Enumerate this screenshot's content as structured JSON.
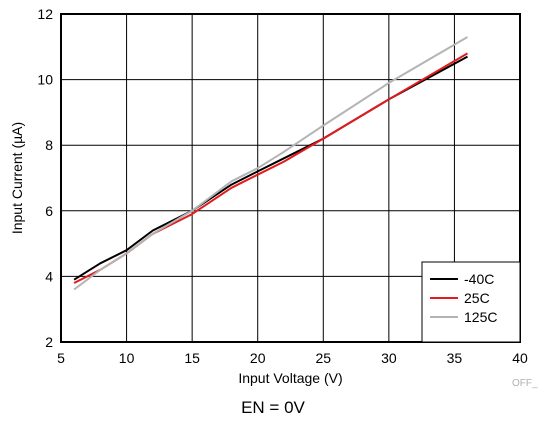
{
  "chart_data": {
    "type": "line",
    "xlabel": "Input Voltage (V)",
    "ylabel": "Input Current (µA)",
    "xlim": [
      5,
      40
    ],
    "ylim": [
      2,
      12
    ],
    "xticks": [
      5,
      10,
      15,
      20,
      25,
      30,
      35,
      40
    ],
    "yticks": [
      2,
      4,
      6,
      8,
      10,
      12
    ],
    "grid": true,
    "legend_position": "bottom-right",
    "series": [
      {
        "name": "-40C",
        "color": "#000000",
        "x": [
          6,
          8,
          10,
          12,
          15,
          18,
          20,
          22,
          25,
          30,
          36
        ],
        "y": [
          3.9,
          4.4,
          4.8,
          5.4,
          6.0,
          6.8,
          7.2,
          7.6,
          8.2,
          9.4,
          10.7
        ]
      },
      {
        "name": "25C",
        "color": "#e41a1c",
        "x": [
          6,
          8,
          10,
          12,
          15,
          18,
          20,
          22,
          25,
          30,
          36
        ],
        "y": [
          3.8,
          4.2,
          4.7,
          5.3,
          5.9,
          6.7,
          7.1,
          7.5,
          8.2,
          9.4,
          10.8
        ]
      },
      {
        "name": "125C",
        "color": "#b4b4b4",
        "x": [
          6,
          8,
          10,
          12,
          15,
          18,
          20,
          22,
          25,
          30,
          36
        ],
        "y": [
          3.6,
          4.2,
          4.7,
          5.3,
          6.0,
          6.9,
          7.3,
          7.8,
          8.6,
          9.9,
          11.3
        ]
      }
    ],
    "footnote": "OFF_",
    "caption": "EN = 0V"
  }
}
